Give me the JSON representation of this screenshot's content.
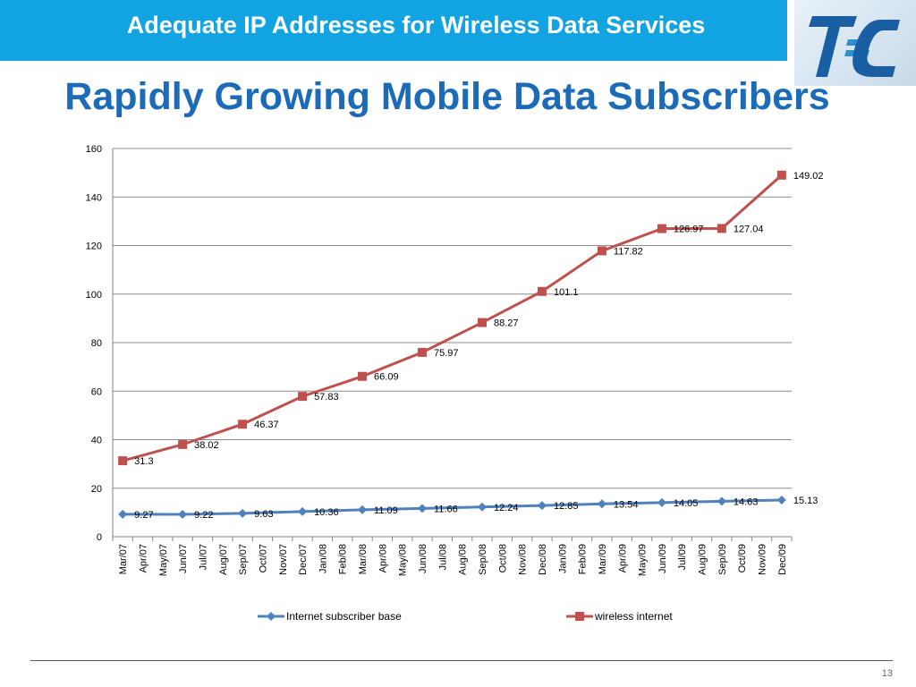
{
  "header": {
    "title": "Adequate IP Addresses for Wireless Data Services"
  },
  "slide": {
    "title": "Rapidly Growing Mobile Data Subscribers",
    "page_number": "13"
  },
  "logo": {
    "name": "tfc-logo",
    "text": "T=C",
    "colors": [
      "#1a5fa3",
      "#2d8fd0"
    ]
  },
  "colors": {
    "header_bar": "#12a3e3",
    "title": "#1b6bb8",
    "series1": "#4f81bd",
    "series2": "#c0504d"
  },
  "chart_data": {
    "type": "line",
    "x": [
      "Mar/07",
      "Apr/07",
      "May/07",
      "Jun/07",
      "Jul/07",
      "Aug/07",
      "Sep/07",
      "Oct/07",
      "Nov/07",
      "Dec/07",
      "Jan/08",
      "Feb/08",
      "Mar/08",
      "Apr/08",
      "May/08",
      "Jun/08",
      "Jul/08",
      "Aug/08",
      "Sep/08",
      "Oct/08",
      "Nov/08",
      "Dec/08",
      "Jan/09",
      "Feb/09",
      "Mar/09",
      "Apr/09",
      "May/09",
      "Jun/09",
      "Jul/09",
      "Aug/09",
      "Sep/09",
      "Oct/09",
      "Nov/09",
      "Dec/09"
    ],
    "ylim": [
      0,
      160
    ],
    "yticks": [
      "0",
      "20",
      "40",
      "60",
      "80",
      "100",
      "120",
      "140",
      "160"
    ],
    "grid": true,
    "legend_position": "bottom",
    "series": [
      {
        "name": "Internet subscriber base",
        "marker": "diamond",
        "color": "#4f81bd",
        "points": [
          {
            "x": "Mar/07",
            "y": 9.27,
            "label": "9.27"
          },
          {
            "x": "Jun/07",
            "y": 9.22,
            "label": "9.22"
          },
          {
            "x": "Sep/07",
            "y": 9.63,
            "label": "9.63"
          },
          {
            "x": "Dec/07",
            "y": 10.36,
            "label": "10.36"
          },
          {
            "x": "Mar/08",
            "y": 11.09,
            "label": "11.09"
          },
          {
            "x": "Jun/08",
            "y": 11.66,
            "label": "11.66"
          },
          {
            "x": "Sep/08",
            "y": 12.24,
            "label": "12.24"
          },
          {
            "x": "Dec/08",
            "y": 12.85,
            "label": "12.85"
          },
          {
            "x": "Mar/09",
            "y": 13.54,
            "label": "13.54"
          },
          {
            "x": "Jun/09",
            "y": 14.05,
            "label": "14.05"
          },
          {
            "x": "Sep/09",
            "y": 14.63,
            "label": "14.63"
          },
          {
            "x": "Dec/09",
            "y": 15.13,
            "label": "15.13"
          }
        ]
      },
      {
        "name": "wireless internet",
        "marker": "square",
        "color": "#c0504d",
        "points": [
          {
            "x": "Mar/07",
            "y": 31.3,
            "label": "31.3"
          },
          {
            "x": "Jun/07",
            "y": 38.02,
            "label": "38.02"
          },
          {
            "x": "Sep/07",
            "y": 46.37,
            "label": "46.37"
          },
          {
            "x": "Dec/07",
            "y": 57.83,
            "label": "57.83"
          },
          {
            "x": "Mar/08",
            "y": 66.09,
            "label": "66.09"
          },
          {
            "x": "Jun/08",
            "y": 75.97,
            "label": "75.97"
          },
          {
            "x": "Sep/08",
            "y": 88.27,
            "label": "88.27"
          },
          {
            "x": "Dec/08",
            "y": 101.1,
            "label": "101.1"
          },
          {
            "x": "Mar/09",
            "y": 117.82,
            "label": "117.82"
          },
          {
            "x": "Jun/09",
            "y": 126.97,
            "label": "126.97"
          },
          {
            "x": "Sep/09",
            "y": 127.04,
            "label": "127.04"
          },
          {
            "x": "Dec/09",
            "y": 149.02,
            "label": "149.02"
          }
        ]
      }
    ]
  }
}
